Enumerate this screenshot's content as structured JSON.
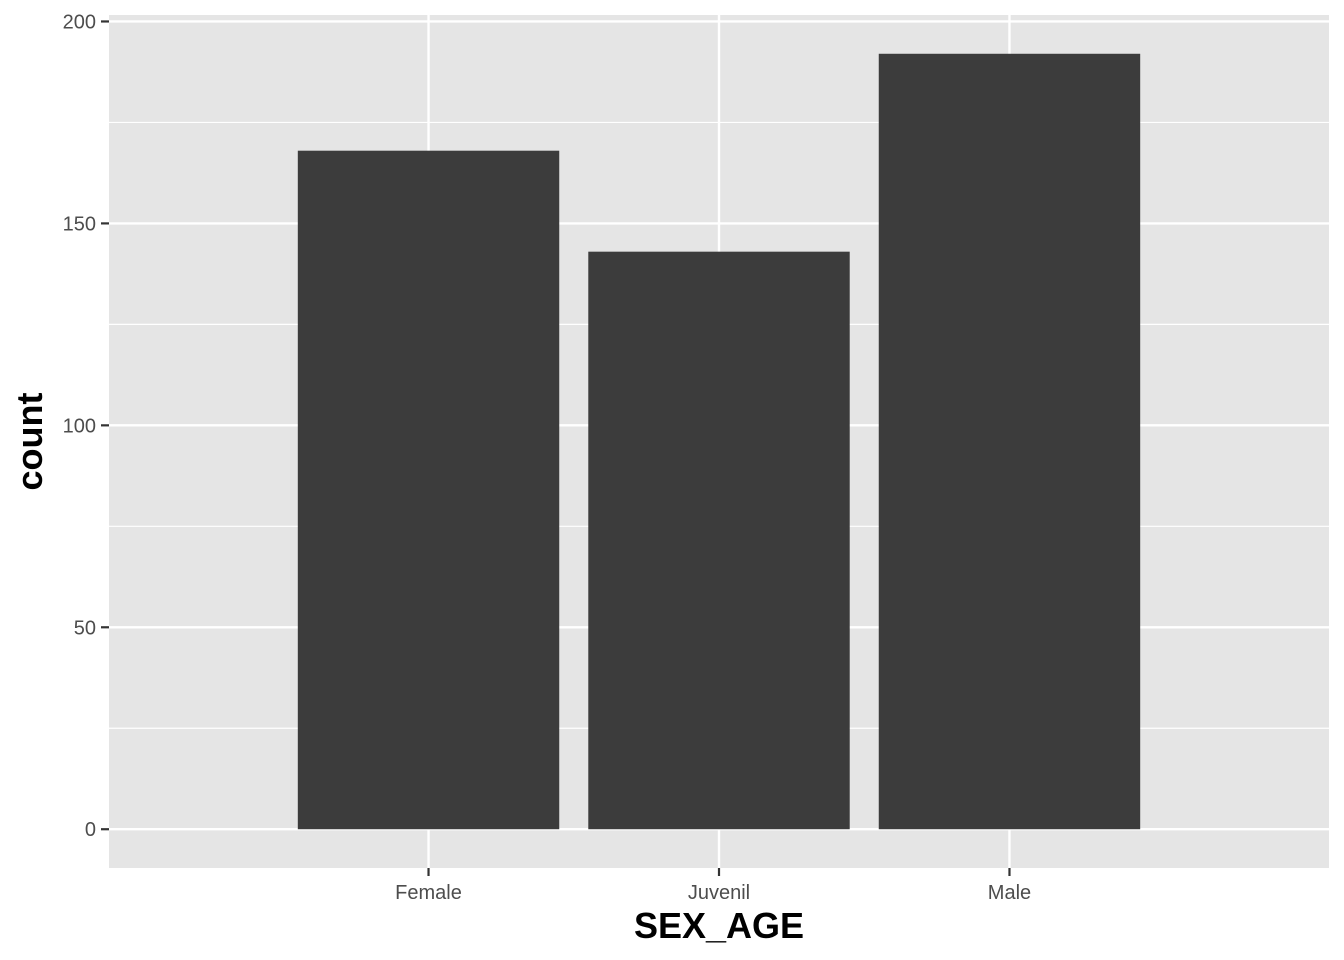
{
  "chart_data": {
    "type": "bar",
    "categories": [
      "Female",
      "Juvenil",
      "Male"
    ],
    "values": [
      168,
      143,
      192
    ],
    "title": "",
    "xlabel": "SEX_AGE",
    "ylabel": "count",
    "ylim": [
      -9.6,
      201.6
    ],
    "yticks": [
      0,
      50,
      100,
      150,
      200
    ],
    "grid": true,
    "legend": "none",
    "colors": {
      "panel_background": "#E5E5E5",
      "grid": "#FFFFFF",
      "bar_fill": "#3C3C3C",
      "tick_text": "#4D4D4D",
      "tick_mark": "#333333",
      "title_text": "#000000"
    }
  }
}
